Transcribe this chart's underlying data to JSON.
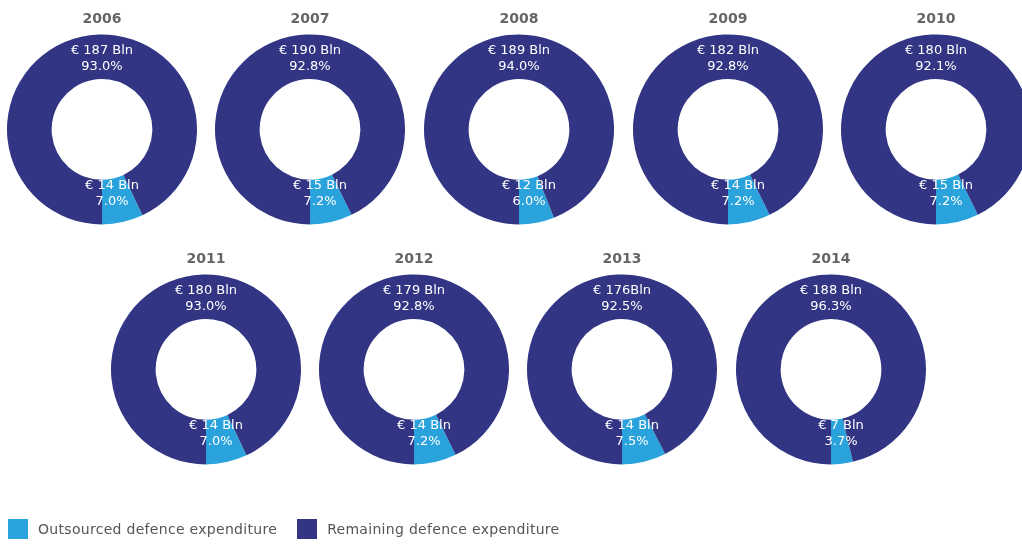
{
  "chart_data": [
    {
      "type": "donut",
      "title": "2006",
      "categories": [
        "Outsourced defence expenditure",
        "Remaining defence expenditure"
      ],
      "values": [
        7.0,
        93.0
      ],
      "colors": [
        "#2aa3dc",
        "#313584"
      ],
      "value_labels": [
        "€ 14 Bln\n7.0%",
        "€ 187 Bln\n93.0%"
      ],
      "legend": "bottom"
    },
    {
      "type": "donut",
      "title": "2007",
      "categories": [
        null,
        null
      ],
      "values": [
        7.2,
        92.8
      ],
      "colors": [
        "#2aa3dc",
        "#313584"
      ],
      "value_labels": [
        "€ 15 Bln\n7.2%",
        "€ 190 Bln\n92.8%"
      ]
    },
    {
      "type": "donut",
      "title": "2008",
      "categories": [
        null,
        null
      ],
      "values": [
        6.0,
        94.0
      ],
      "colors": [
        "#2aa3dc",
        "#313584"
      ],
      "value_labels": [
        "€ 12 Bln\n6.0%",
        "€ 189 Bln\n94.0%"
      ]
    },
    {
      "type": "donut",
      "title": "2009",
      "categories": [
        null,
        null
      ],
      "values": [
        7.2,
        92.8
      ],
      "colors": [
        "#2aa3dc",
        "#313584"
      ],
      "value_labels": [
        "€ 14 Bln\n7.2%",
        "€ 182 Bln\n92.8%"
      ]
    },
    {
      "type": "donut",
      "title": "2010",
      "categories": [
        null,
        null
      ],
      "values": [
        7.2,
        92.1
      ],
      "colors": [
        "#2aa3dc",
        "#313584"
      ],
      "value_labels": [
        "€ 15 Bln\n7.2%",
        "€ 180 Bln\n92.1%"
      ]
    },
    {
      "type": "donut",
      "title": "2011",
      "categories": [
        null,
        null
      ],
      "values": [
        7.0,
        93.0
      ],
      "colors": [
        "#2aa3dc",
        "#313584"
      ],
      "value_labels": [
        "€ 14 Bln\n7.0%",
        "€ 180 Bln\n93.0%"
      ]
    },
    {
      "type": "donut",
      "title": "2012",
      "categories": [
        null,
        null
      ],
      "values": [
        7.2,
        92.8
      ],
      "colors": [
        "#2aa3dc",
        "#313584"
      ],
      "value_labels": [
        "€ 14 Bln\n7.2%",
        "€ 179 Bln\n92.8%"
      ]
    },
    {
      "type": "donut",
      "title": "2013",
      "categories": [
        null,
        null
      ],
      "values": [
        7.5,
        92.5
      ],
      "colors": [
        "#2aa3dc",
        "#313584"
      ],
      "value_labels": [
        "€ 14 Bln\n7.5%",
        "€ 176Bln\n92.5%"
      ]
    },
    {
      "type": "donut",
      "title": "2014",
      "categories": [
        null,
        null
      ],
      "values": [
        3.7,
        96.3
      ],
      "colors": [
        "#2aa3dc",
        "#313584"
      ],
      "value_labels": [
        "€ 7 Bln\n3.7%",
        "€ 188 Bln\n96.3%"
      ]
    }
  ]
}
